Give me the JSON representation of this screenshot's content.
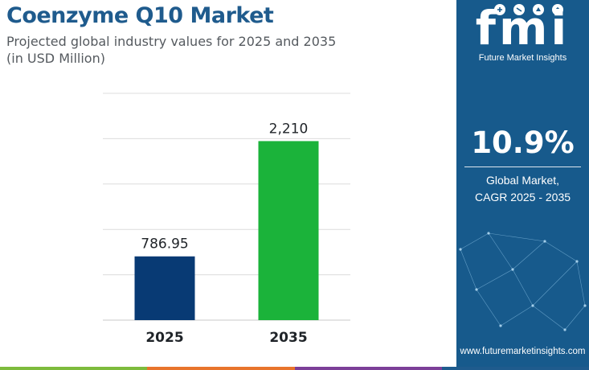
{
  "header": {
    "title": "Coenzyme Q10 Market",
    "subtitle_line1": "Projected global industry values for 2025 and 2035",
    "subtitle_line2": "(in USD Million)"
  },
  "chart_data": {
    "type": "bar",
    "title": "Coenzyme Q10 Market",
    "categories": [
      "2025",
      "2035"
    ],
    "values": [
      786.95,
      2210
    ],
    "value_labels": [
      "786.95",
      "2,210"
    ],
    "bar_colors": [
      "#083a74",
      "#1bb33a"
    ],
    "ylim": [
      0,
      2800
    ],
    "grid": true,
    "xlabel": "",
    "ylabel": ""
  },
  "sidebar": {
    "logo_mark": "fmi",
    "logo_text": "Future Market Insights",
    "cagr_value": "10.9%",
    "cagr_label_line1": "Global Market,",
    "cagr_label_line2": "CAGR 2025 - 2035",
    "website": "www.futuremarketinsights.com"
  },
  "colors": {
    "title": "#1f5b8d",
    "sidebar_bg": "#175a8c",
    "bottom_strip": [
      "#7dbb3c",
      "#e8742c",
      "#7c3f98",
      "#1f5b8d"
    ]
  }
}
